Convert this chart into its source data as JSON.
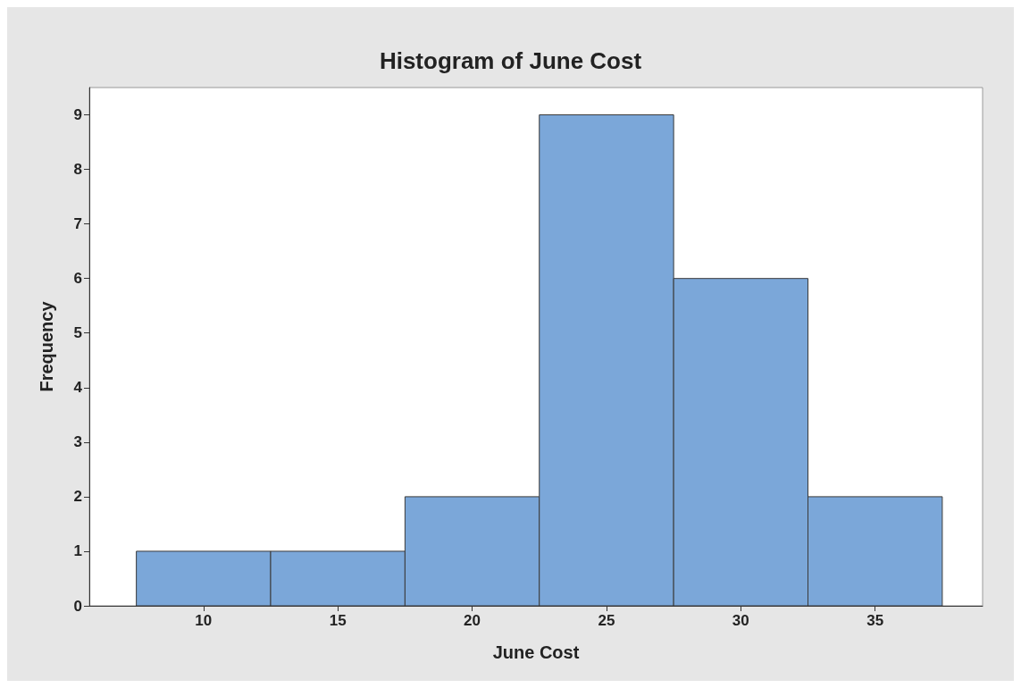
{
  "chart_data": {
    "type": "histogram",
    "title": "Histogram of June Cost",
    "xlabel": "June Cost",
    "ylabel": "Frequency",
    "bins": [
      7.5,
      12.5,
      17.5,
      22.5,
      27.5,
      32.5,
      37.5
    ],
    "values": [
      1,
      1,
      2,
      9,
      6,
      2
    ],
    "color": "#7ba7d9",
    "xlim": [
      5.75,
      39
    ],
    "xticks": [
      10,
      15,
      20,
      25,
      30,
      35
    ],
    "ylim": [
      0,
      9.5
    ],
    "yticks": [
      0,
      1,
      2,
      3,
      4,
      5,
      6,
      7,
      8,
      9
    ]
  }
}
